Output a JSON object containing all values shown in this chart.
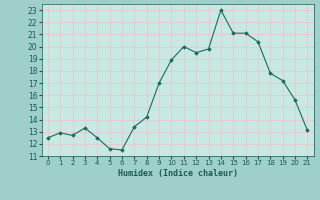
{
  "x": [
    0,
    1,
    2,
    3,
    4,
    5,
    6,
    7,
    8,
    9,
    10,
    11,
    12,
    13,
    14,
    15,
    16,
    17,
    18,
    19,
    20,
    21
  ],
  "y": [
    12.5,
    12.9,
    12.7,
    13.3,
    12.5,
    11.6,
    11.5,
    13.4,
    14.2,
    17.0,
    18.9,
    20.0,
    19.5,
    19.8,
    23.0,
    21.1,
    21.1,
    20.4,
    17.8,
    17.2,
    15.6,
    13.1
  ],
  "xlabel": "Humidex (Indice chaleur)",
  "xlim": [
    -0.5,
    21.5
  ],
  "ylim": [
    11,
    23.5
  ],
  "yticks": [
    11,
    12,
    13,
    14,
    15,
    16,
    17,
    18,
    19,
    20,
    21,
    22,
    23
  ],
  "xticks": [
    0,
    1,
    2,
    3,
    4,
    5,
    6,
    7,
    8,
    9,
    10,
    11,
    12,
    13,
    14,
    15,
    16,
    17,
    18,
    19,
    20,
    21
  ],
  "line_color": "#1a6b5a",
  "marker_color": "#1a6b5a",
  "bg_color": "#9ecfca",
  "grid_color": "#e8c8c8",
  "plot_bg": "#c8e8e4",
  "tick_color": "#1a5a50",
  "label_color": "#1a5a50"
}
